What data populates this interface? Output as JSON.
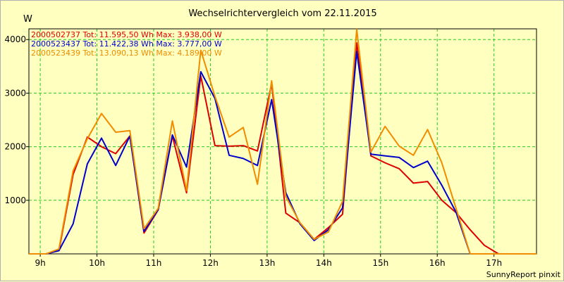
{
  "chart_data": {
    "type": "line",
    "title": "Wechselrichtervergleich vom 22.11.2015",
    "ylabel": "W",
    "xlabel": "",
    "grid": true,
    "legend_position": "top-left",
    "xlim": [
      8.8,
      17.75
    ],
    "ylim": [
      0,
      4200
    ],
    "x_ticks": [
      {
        "value": 9,
        "label": "9h"
      },
      {
        "value": 10,
        "label": "10h"
      },
      {
        "value": 11,
        "label": "11h"
      },
      {
        "value": 12,
        "label": "12h"
      },
      {
        "value": 13,
        "label": "13h"
      },
      {
        "value": 14,
        "label": "14h"
      },
      {
        "value": 15,
        "label": "15h"
      },
      {
        "value": 16,
        "label": "16h"
      },
      {
        "value": 17,
        "label": "17h"
      }
    ],
    "y_ticks": [
      {
        "value": 1000,
        "label": "1000"
      },
      {
        "value": 2000,
        "label": "2000"
      },
      {
        "value": 3000,
        "label": "3000"
      },
      {
        "value": 4000,
        "label": "4000"
      }
    ],
    "series": [
      {
        "name": "2000502737",
        "legend": "2000502737 Tot: 11.595,50 Wh Max: 3.938,00 W",
        "color": "#dd0000",
        "x": [
          8.8,
          9.1,
          9.33,
          9.58,
          9.83,
          10.08,
          10.33,
          10.58,
          10.83,
          11.08,
          11.33,
          11.58,
          11.83,
          12.08,
          12.33,
          12.58,
          12.83,
          13.08,
          13.33,
          13.58,
          13.83,
          14.08,
          14.33,
          14.58,
          14.83,
          15.08,
          15.33,
          15.58,
          15.83,
          16.08,
          16.33,
          16.58,
          16.83,
          17.08,
          17.33,
          17.75
        ],
        "y": [
          0,
          0,
          60,
          1480,
          2180,
          2000,
          1870,
          2200,
          390,
          820,
          2200,
          1140,
          3320,
          2020,
          2010,
          2020,
          1920,
          3180,
          760,
          580,
          270,
          490,
          740,
          3938,
          1830,
          1700,
          1590,
          1320,
          1350,
          1000,
          770,
          450,
          160,
          0,
          0,
          0
        ]
      },
      {
        "name": "2000523437",
        "legend": "2000523437 Tot: 11.422,38 Wh Max: 3.777,00 W",
        "color": "#0000cc",
        "x": [
          8.8,
          9.1,
          9.33,
          9.58,
          9.83,
          10.08,
          10.33,
          10.58,
          10.83,
          11.08,
          11.33,
          11.58,
          11.83,
          12.08,
          12.33,
          12.58,
          12.83,
          13.08,
          13.33,
          13.58,
          13.83,
          14.08,
          14.33,
          14.58,
          14.83,
          15.08,
          15.33,
          15.58,
          15.83,
          16.08,
          16.33,
          16.58,
          16.83,
          17.08,
          17.33,
          17.75
        ],
        "y": [
          0,
          0,
          60,
          560,
          1680,
          2160,
          1650,
          2200,
          420,
          830,
          2220,
          1620,
          3400,
          2900,
          1840,
          1780,
          1650,
          2880,
          1140,
          560,
          250,
          450,
          860,
          3777,
          1860,
          1830,
          1800,
          1610,
          1730,
          1280,
          780,
          0,
          0,
          0,
          0,
          0
        ]
      },
      {
        "name": "2000523439",
        "legend": "2000523439 Tot: 13.090,13 Wh Max: 4.189,00 W",
        "color": "#f08c00",
        "x": [
          8.8,
          9.1,
          9.33,
          9.58,
          9.83,
          10.08,
          10.33,
          10.58,
          10.83,
          11.08,
          11.33,
          11.58,
          11.83,
          12.08,
          12.33,
          12.58,
          12.83,
          13.08,
          13.33,
          13.58,
          13.83,
          14.08,
          14.33,
          14.58,
          14.83,
          15.08,
          15.33,
          15.58,
          15.83,
          16.08,
          16.33,
          16.58,
          16.83,
          17.08,
          17.33,
          17.75
        ],
        "y": [
          0,
          0,
          90,
          1550,
          2150,
          2620,
          2270,
          2300,
          470,
          850,
          2480,
          1180,
          3800,
          2940,
          2180,
          2360,
          1300,
          3230,
          1070,
          580,
          270,
          410,
          980,
          4189,
          1900,
          2380,
          2010,
          1840,
          2320,
          1700,
          850,
          0,
          0,
          0,
          0,
          0
        ]
      }
    ]
  },
  "footer": "SunnyReport pinxit"
}
